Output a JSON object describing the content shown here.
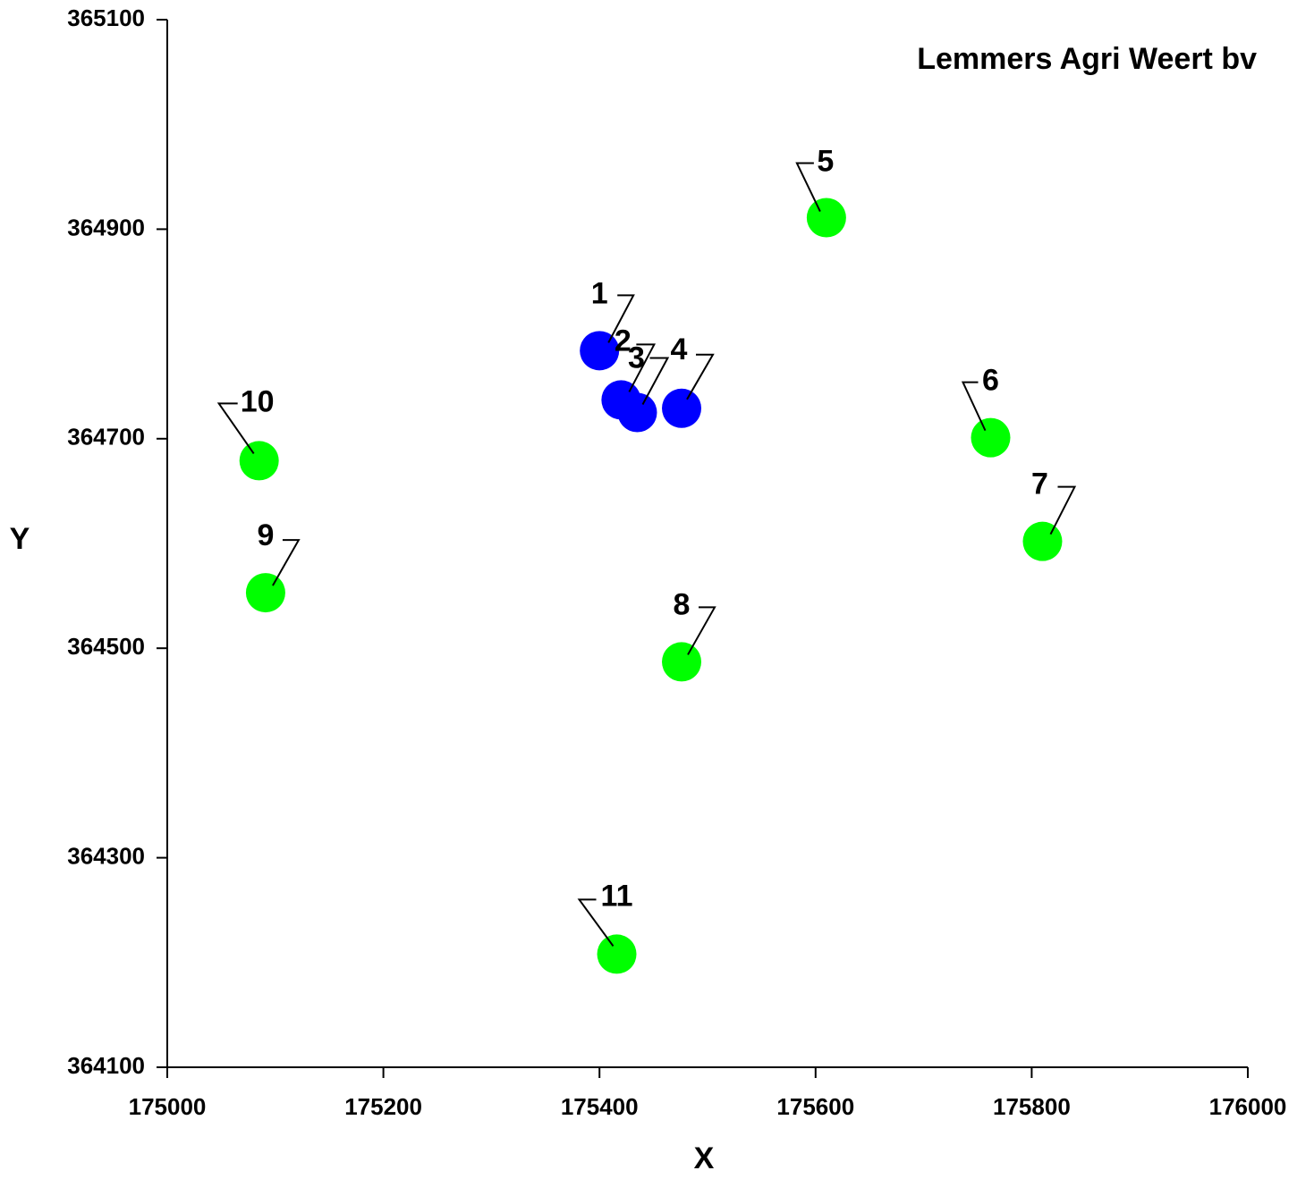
{
  "chart_data": {
    "type": "scatter",
    "title": "Lemmers Agri Weert bv",
    "x_label": "X",
    "y_label": "Y",
    "series": [
      {
        "x": [
          175400,
          175420,
          175435,
          175476,
          175610,
          175762,
          175810,
          175476,
          175091,
          175085,
          175416
        ],
        "values": [
          364784,
          364737,
          364725,
          364729,
          364911,
          364701,
          364602,
          364487,
          364553,
          364679,
          364208
        ],
        "labels": [
          "1",
          "2",
          "3",
          "4",
          "5",
          "6",
          "7",
          "8",
          "9",
          "10",
          "11"
        ],
        "colors": [
          "#0000ff",
          "#0000ff",
          "#0000ff",
          "#0000ff",
          "#00ff00",
          "#00ff00",
          "#00ff00",
          "#00ff00",
          "#00ff00",
          "#00ff00",
          "#00ff00"
        ]
      }
    ],
    "xlim": [
      175000,
      176000
    ],
    "xticks": [
      175000,
      175200,
      175400,
      175600,
      175800,
      176000
    ],
    "ylim": [
      364100,
      365100
    ],
    "yticks": [
      364100,
      364300,
      364500,
      364700,
      364900,
      365100
    ],
    "grid": false
  }
}
